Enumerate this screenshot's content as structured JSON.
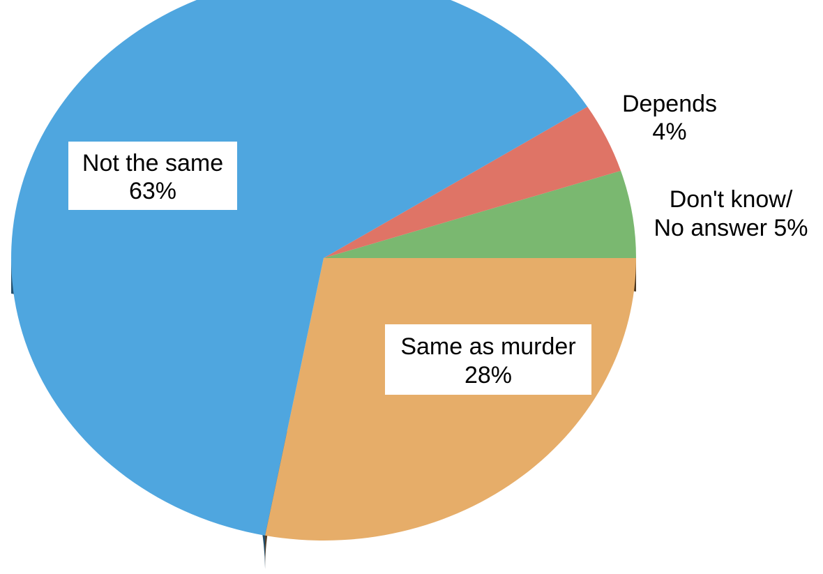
{
  "chart_data": {
    "type": "pie",
    "title": "",
    "legend": "none",
    "slices": [
      {
        "label_line1": "Not the same",
        "label_line2": "63%",
        "value": 63,
        "color": "#4fa6df",
        "side_color": "#2b5f82"
      },
      {
        "label_line1": "Depends",
        "label_line2": "4%",
        "value": 4,
        "color": "#df7466",
        "side_color": "#8a4034"
      },
      {
        "label_line1": "Don't know/",
        "label_line2": "No answer 5%",
        "value": 5,
        "color": "#7ab870",
        "side_color": "#476c3f"
      },
      {
        "label_line1": "Same as murder",
        "label_line2": "28%",
        "value": 28,
        "color": "#e6ad69",
        "side_color": "#5e4428"
      }
    ]
  }
}
